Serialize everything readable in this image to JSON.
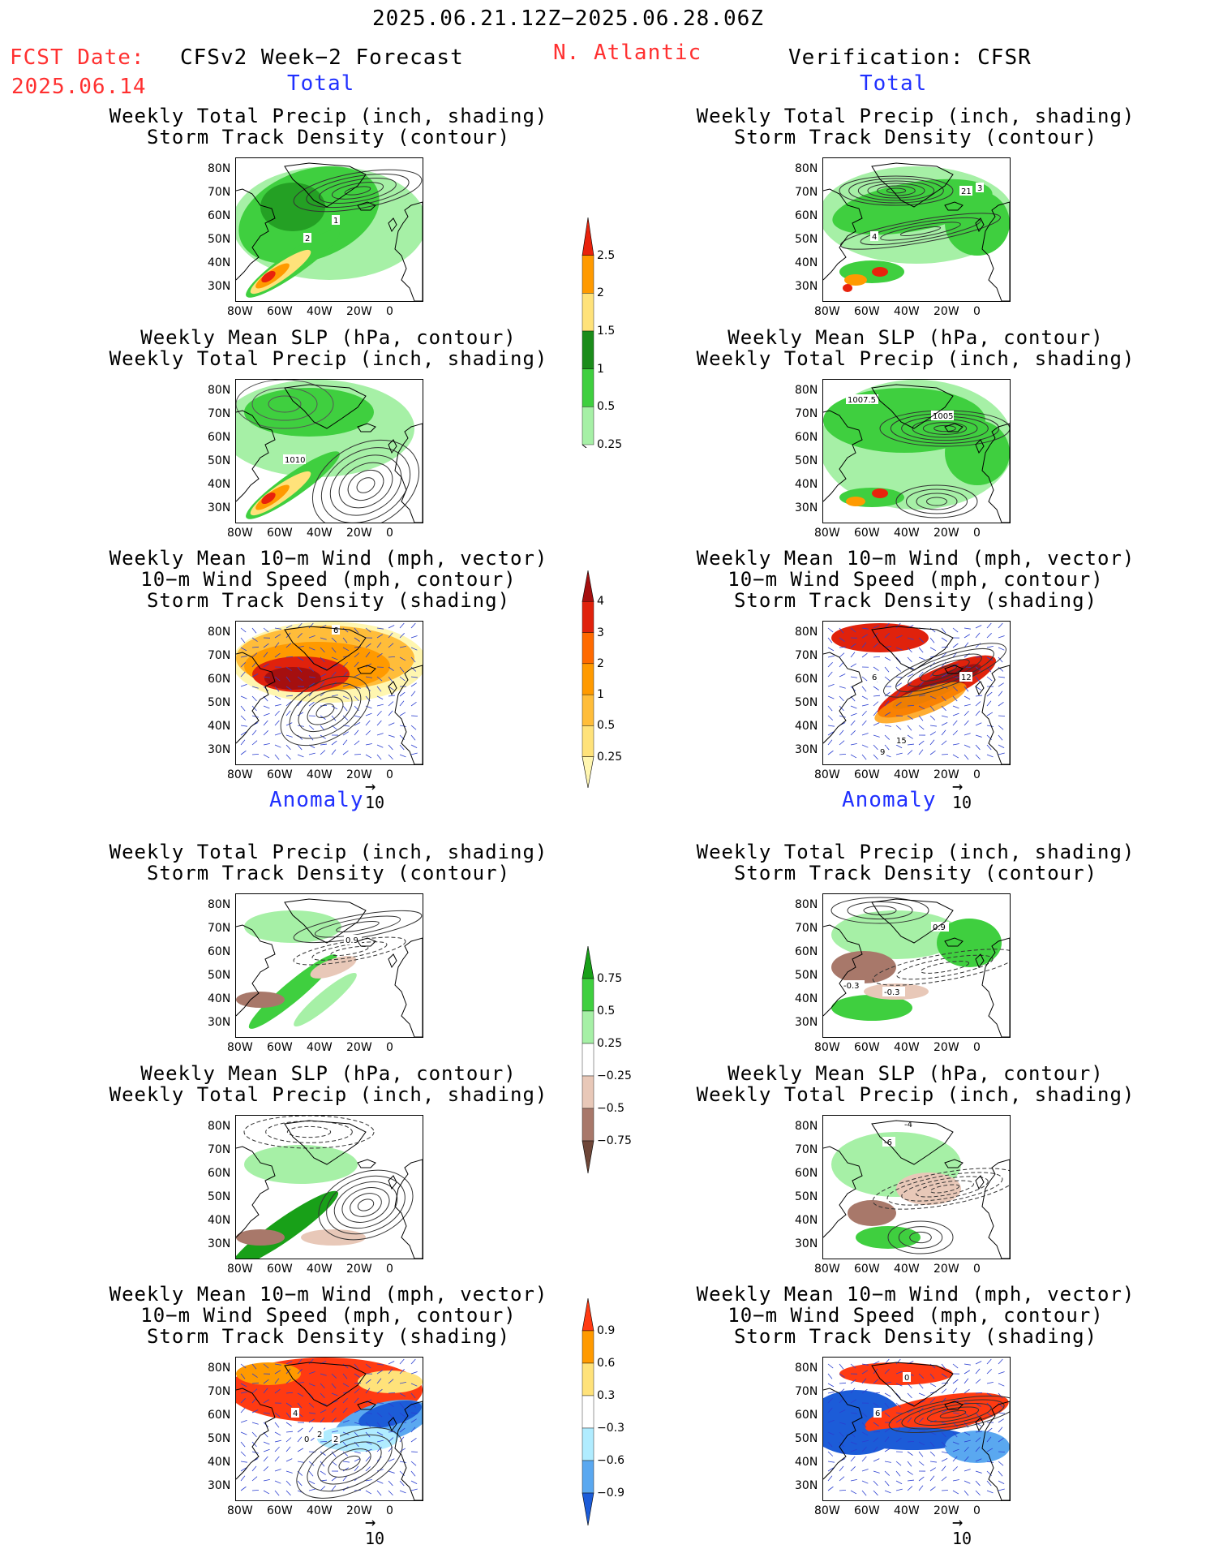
{
  "header": {
    "date_range": "2025.06.21.12Z−2025.06.28.06Z",
    "fcst_label": "FCST Date:",
    "fcst_date": "2025.06.14",
    "model": "CFSv2 Week−2 Forecast",
    "region": "N. Atlantic",
    "verification": "Verification: CFSR"
  },
  "sections": {
    "total": "Total",
    "anomaly": "Anomaly"
  },
  "titles": {
    "precip_storm": [
      "Weekly Total Precip (inch, shading)",
      "Storm Track Density (contour)"
    ],
    "slp_precip": [
      "Weekly Mean SLP (hPa, contour)",
      "Weekly Total Precip (inch, shading)"
    ],
    "wind_storm": [
      "Weekly Mean 10−m Wind (mph, vector)",
      "10−m Wind Speed (mph, contour)",
      "Storm Track Density (shading)"
    ]
  },
  "axes": {
    "lat_labels": [
      "80N",
      "70N",
      "60N",
      "50N",
      "40N",
      "30N"
    ],
    "lon_labels": [
      "80W",
      "60W",
      "40W",
      "20W",
      "0"
    ]
  },
  "vector_ref": "10",
  "contour_labels": {
    "fc_total_precip": [
      "1",
      "2"
    ],
    "vf_total_precip": [
      "4",
      "21",
      "3"
    ],
    "fc_total_slp": [
      "1010"
    ],
    "vf_total_slp": [
      "1007.5",
      "1005"
    ],
    "fc_total_wind": [
      "6"
    ],
    "vf_total_wind": [
      "6",
      "12",
      "15",
      "9"
    ],
    "fc_anom_precip": [
      "0.9"
    ],
    "vf_anom_precip": [
      "0.9",
      "-0.3",
      "-0.3"
    ],
    "fc_anom_slp": [],
    "vf_anom_slp": [
      "-4",
      "-6"
    ],
    "fc_anom_wind": [
      "4",
      "2",
      "0",
      "2"
    ],
    "vf_anom_wind": [
      "0",
      "6"
    ]
  },
  "colorbars": {
    "total_precip": {
      "labels": [
        "2.5",
        "2",
        "1.5",
        "1",
        "0.5",
        "0.25"
      ],
      "colors": [
        "#e8220c",
        "#ff9a00",
        "#ffe27a",
        "#1a8c1a",
        "#3fcf3f",
        "#a6f0a6"
      ]
    },
    "total_storm": {
      "labels": [
        "4",
        "3",
        "2",
        "1",
        "0.5",
        "0.25"
      ],
      "colors": [
        "#a50f0f",
        "#e0220c",
        "#ff6a00",
        "#ff9a00",
        "#ffbd3a",
        "#ffe27a",
        "#fff6b0"
      ]
    },
    "anom_precip": {
      "labels": [
        "0.75",
        "0.5",
        "0.25",
        "−0.25",
        "−0.5",
        "−0.75"
      ],
      "colors": [
        "#18a018",
        "#3fcf3f",
        "#a6f0a6",
        "#ffffff",
        "#e8c8b8",
        "#a8786a",
        "#6e4638"
      ]
    },
    "anom_storm": {
      "labels": [
        "0.9",
        "0.6",
        "0.3",
        "−0.3",
        "−0.6",
        "−0.9"
      ],
      "colors": [
        "#ff3a12",
        "#ff9a00",
        "#ffe27a",
        "#ffffff",
        "#b0ecff",
        "#5aa8f0",
        "#1c5cd8"
      ]
    }
  }
}
